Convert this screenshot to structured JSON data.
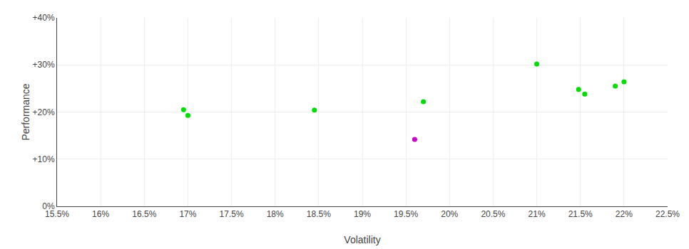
{
  "chart_data": {
    "type": "scatter",
    "xlabel": "Volatility",
    "ylabel": "Performance",
    "x": [
      0.1695,
      0.17,
      0.1845,
      0.197,
      0.196,
      0.21,
      0.2148,
      0.2155,
      0.219,
      0.22
    ],
    "values": [
      0.205,
      0.193,
      0.204,
      0.222,
      0.142,
      0.302,
      0.248,
      0.238,
      0.255,
      0.264
    ],
    "colors": [
      "#00dd00",
      "#00dd00",
      "#00dd00",
      "#00dd00",
      "#cc00cc",
      "#00dd00",
      "#00dd00",
      "#00dd00",
      "#00dd00",
      "#00dd00"
    ],
    "xlim": [
      0.155,
      0.225
    ],
    "ylim": [
      0.0,
      0.4
    ],
    "xticks": [
      {
        "value": 0.155,
        "label": "15.5%"
      },
      {
        "value": 0.16,
        "label": "16%"
      },
      {
        "value": 0.165,
        "label": "16.5%"
      },
      {
        "value": 0.17,
        "label": "17%"
      },
      {
        "value": 0.175,
        "label": "17.5%"
      },
      {
        "value": 0.18,
        "label": "18%"
      },
      {
        "value": 0.185,
        "label": "18.5%"
      },
      {
        "value": 0.19,
        "label": "19%"
      },
      {
        "value": 0.195,
        "label": "19.5%"
      },
      {
        "value": 0.2,
        "label": "20%"
      },
      {
        "value": 0.205,
        "label": "20.5%"
      },
      {
        "value": 0.21,
        "label": "21%"
      },
      {
        "value": 0.215,
        "label": "21.5%"
      },
      {
        "value": 0.22,
        "label": "22%"
      },
      {
        "value": 0.225,
        "label": "22.5%"
      }
    ],
    "yticks": [
      {
        "value": 0.0,
        "label": "0%"
      },
      {
        "value": 0.1,
        "label": "+10%"
      },
      {
        "value": 0.2,
        "label": "+20%"
      },
      {
        "value": 0.3,
        "label": "+30%"
      },
      {
        "value": 0.4,
        "label": "+40%"
      }
    ],
    "grid": true
  }
}
